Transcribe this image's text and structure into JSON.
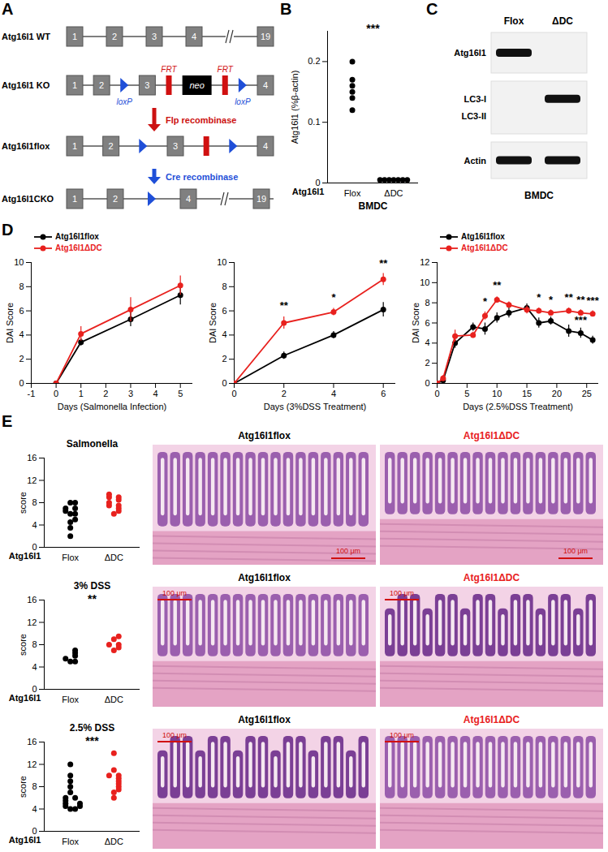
{
  "diagram": {
    "panel": "A",
    "rows": [
      {
        "label": "Atg16l1 WT",
        "elements": [
          {
            "kind": "exon",
            "text": "1"
          },
          {
            "kind": "exon",
            "text": "2"
          },
          {
            "kind": "exon",
            "text": "3"
          },
          {
            "kind": "exon",
            "text": "4"
          },
          {
            "kind": "break"
          },
          {
            "kind": "exon",
            "text": "19"
          }
        ]
      },
      {
        "label": "Atg16l1 KO",
        "elements": [
          {
            "kind": "exon",
            "text": "1"
          },
          {
            "kind": "exon",
            "text": "2"
          },
          {
            "kind": "loxp",
            "text": "loxP"
          },
          {
            "kind": "exon",
            "text": "3"
          },
          {
            "kind": "frt",
            "text": "FRT"
          },
          {
            "kind": "neo",
            "text": "neo"
          },
          {
            "kind": "frt",
            "text": "FRT"
          },
          {
            "kind": "loxp",
            "text": "loxP"
          },
          {
            "kind": "exon",
            "text": "4"
          }
        ]
      },
      {
        "label": "Atg16l1flox",
        "elements": [
          {
            "kind": "exon",
            "text": "1"
          },
          {
            "kind": "exon",
            "text": "2"
          },
          {
            "kind": "loxp"
          },
          {
            "kind": "exon",
            "text": "3"
          },
          {
            "kind": "frt"
          },
          {
            "kind": "loxp"
          },
          {
            "kind": "exon",
            "text": "4"
          }
        ]
      },
      {
        "label": "Atg16l1CKO",
        "elements": [
          {
            "kind": "exon",
            "text": "1"
          },
          {
            "kind": "exon",
            "text": "2"
          },
          {
            "kind": "loxp"
          },
          {
            "kind": "exon",
            "text": "4"
          },
          {
            "kind": "break"
          },
          {
            "kind": "exon",
            "text": "19"
          }
        ]
      }
    ],
    "arrows": [
      {
        "text": "Flp recombinase",
        "color": "#cc1111"
      },
      {
        "text": "Cre recombinase",
        "color": "#1f4fd8"
      }
    ]
  },
  "blot": {
    "panel": "C",
    "lanes": [
      "Flox",
      "ΔDC"
    ],
    "rows": [
      {
        "labels": [
          "Atg16l1"
        ],
        "bands": [
          [
            true,
            false
          ]
        ]
      },
      {
        "labels": [
          "LC3-I",
          "LC3-II"
        ],
        "bands": [
          [
            false,
            true
          ],
          [
            false,
            false
          ]
        ]
      },
      {
        "labels": [
          "Actin"
        ],
        "bands": [
          [
            true,
            true
          ]
        ]
      }
    ],
    "group_label": "BMDC"
  },
  "chart_data": [
    {
      "panel": "B",
      "type": "scatter",
      "ylabel": "Atg16l1 (%β-actin)",
      "xlabel": "Atg16l1",
      "categories": [
        "Flox",
        "ΔDC"
      ],
      "values": [
        [
          0.2,
          0.17,
          0.16,
          0.15,
          0.14,
          0.12
        ],
        [
          0.005,
          0.005,
          0.005,
          0.005,
          0.005,
          0.005,
          0.005
        ]
      ],
      "colors": [
        "#000000",
        "#000000"
      ],
      "ylim": [
        0,
        0.25
      ],
      "yticks": [
        0,
        0.1,
        0.2
      ],
      "annotations": [
        {
          "text": "***"
        },
        {
          "text": "BMDC"
        }
      ]
    },
    {
      "panel": "D",
      "type": "line",
      "marker": "circle",
      "legend": "top-left",
      "xlabel": "Days (Salmonella Infection)",
      "ylabel": "DAI Score",
      "xlim": [
        -1,
        5.5
      ],
      "xticks": [
        -1,
        0,
        1,
        2,
        3,
        4,
        5
      ],
      "ylim": [
        0,
        10
      ],
      "yticks": [
        0,
        2,
        4,
        6,
        8,
        10
      ],
      "series": [
        {
          "name": "Atg16l1flox",
          "color": "#000000",
          "x": [
            0,
            1,
            3,
            5
          ],
          "values": [
            0,
            3.4,
            5.3,
            7.3
          ],
          "errors": [
            0,
            0.3,
            0.6,
            0.8
          ]
        },
        {
          "name": "Atg16l1ΔDC",
          "color": "#e8211e",
          "x": [
            0,
            1,
            3,
            5
          ],
          "values": [
            0,
            4.1,
            6.1,
            8.1
          ],
          "errors": [
            0,
            0.6,
            1.0,
            0.8
          ]
        }
      ],
      "annotations": []
    },
    {
      "type": "line",
      "marker": "circle",
      "xlabel": "Days (3%DSS Treatment)",
      "ylabel": "DAI Score",
      "xlim": [
        0,
        6.5
      ],
      "xticks": [
        0,
        2,
        4,
        6
      ],
      "ylim": [
        0,
        10
      ],
      "yticks": [
        0,
        2,
        4,
        6,
        8,
        10
      ],
      "series": [
        {
          "name": "Atg16l1flox",
          "color": "#000000",
          "x": [
            0,
            2,
            4,
            6
          ],
          "values": [
            0,
            2.3,
            4.0,
            6.1
          ],
          "errors": [
            0.1,
            0.3,
            0.3,
            0.6
          ]
        },
        {
          "name": "Atg16l1ΔDC",
          "color": "#e8211e",
          "x": [
            0,
            2,
            4,
            6
          ],
          "values": [
            0,
            5.0,
            5.9,
            8.6
          ],
          "errors": [
            0.1,
            0.5,
            0.3,
            0.5
          ]
        }
      ],
      "annotations": [
        {
          "x": 2,
          "y": 6.0,
          "text": "**"
        },
        {
          "x": 4,
          "y": 6.7,
          "text": "*"
        },
        {
          "x": 6,
          "y": 9.5,
          "text": "**"
        }
      ]
    },
    {
      "type": "line",
      "marker": "circle",
      "legend": "top-left",
      "xlabel": "Days (2.5%DSS Treatment)",
      "ylabel": "DAI Score",
      "xlim": [
        0,
        27
      ],
      "xticks": [
        0,
        5,
        10,
        15,
        20,
        25
      ],
      "ylim": [
        0,
        12
      ],
      "yticks": [
        0,
        2,
        4,
        6,
        8,
        10,
        12
      ],
      "series": [
        {
          "name": "Atg16l1flox",
          "color": "#000000",
          "x": [
            0,
            1,
            3,
            6,
            8,
            10,
            12,
            15,
            17,
            19,
            22,
            24,
            26
          ],
          "values": [
            0,
            0.3,
            4.0,
            5.6,
            5.4,
            6.5,
            7.0,
            7.5,
            6.0,
            6.2,
            5.2,
            5.0,
            4.3
          ],
          "errors": [
            0,
            0.2,
            0.5,
            0.4,
            0.6,
            0.5,
            0.5,
            0.4,
            0.5,
            0.4,
            0.6,
            0.5,
            0.4
          ]
        },
        {
          "name": "Atg16l1ΔDC",
          "color": "#e8211e",
          "x": [
            0,
            1,
            3,
            6,
            8,
            10,
            12,
            15,
            17,
            19,
            22,
            24,
            26
          ],
          "values": [
            0,
            0.5,
            4.7,
            4.8,
            6.7,
            8.3,
            7.8,
            7.3,
            7.2,
            7.0,
            7.2,
            7.0,
            6.9
          ],
          "errors": [
            0,
            0.3,
            0.6,
            0.3,
            0.4,
            0.3,
            0.3,
            0.4,
            0.3,
            0.3,
            0.3,
            0.3,
            0.3
          ]
        }
      ],
      "annotations": [
        {
          "x": 8,
          "y": 7.6,
          "text": "*"
        },
        {
          "x": 10,
          "y": 9.2,
          "text": "**"
        },
        {
          "x": 17,
          "y": 8.0,
          "text": "*"
        },
        {
          "x": 19,
          "y": 7.8,
          "text": "*"
        },
        {
          "x": 22,
          "y": 8.0,
          "text": "**"
        },
        {
          "x": 24,
          "y": 7.8,
          "text": "**"
        },
        {
          "x": 26,
          "y": 7.7,
          "text": "***"
        },
        {
          "x": 24,
          "y": 5.8,
          "text": "***"
        }
      ]
    },
    {
      "panel": "E",
      "type": "scatter",
      "title": "Salmonella",
      "xlabel": "Atg16l1",
      "ylabel": "score",
      "categories": [
        "Flox",
        "ΔDC"
      ],
      "values": [
        [
          2,
          3.5,
          4.5,
          5,
          6,
          6,
          6.5,
          7,
          7,
          8,
          8
        ],
        [
          6,
          6.5,
          7,
          7.5,
          7.5,
          8,
          8.5,
          9,
          9,
          9.5
        ]
      ],
      "colors": [
        "#000000",
        "#e8211e"
      ],
      "ylim": [
        0,
        16
      ],
      "yticks": [
        0,
        4,
        8,
        12,
        16
      ],
      "annotations": []
    },
    {
      "type": "scatter",
      "title": "3% DSS",
      "xlabel": "Atg16l1",
      "ylabel": "score",
      "categories": [
        "Flox",
        "ΔDC"
      ],
      "values": [
        [
          5,
          5,
          5.5,
          6,
          6.5,
          7
        ],
        [
          7,
          7.5,
          8,
          8,
          9,
          9.5
        ]
      ],
      "colors": [
        "#000000",
        "#e8211e"
      ],
      "ylim": [
        0,
        16
      ],
      "yticks": [
        0,
        4,
        8,
        12,
        16
      ],
      "annotations": [
        {
          "text": "**"
        }
      ]
    },
    {
      "type": "scatter",
      "title": "2.5% DSS",
      "xlabel": "Atg16l1",
      "ylabel": "score",
      "categories": [
        "Flox",
        "ΔDC"
      ],
      "values": [
        [
          4,
          4,
          4.5,
          4.5,
          5,
          5,
          5.5,
          6,
          6,
          7,
          8,
          9,
          10,
          12
        ],
        [
          6,
          7,
          7.5,
          8,
          8.5,
          9,
          9.5,
          10,
          10,
          11,
          14
        ]
      ],
      "colors": [
        "#000000",
        "#e8211e"
      ],
      "ylim": [
        0,
        16
      ],
      "yticks": [
        0,
        4,
        8,
        12,
        16
      ],
      "annotations": [
        {
          "text": "***"
        }
      ]
    }
  ],
  "images": {
    "rows": [
      {
        "titles": [
          "Atg16l1flox",
          "Atg16l1ΔDC"
        ],
        "colors": [
          "#000000",
          "#e8211e"
        ],
        "scale_bars": [
          "100 μm",
          "100 μm"
        ]
      },
      {
        "titles": [
          "Atg16l1flox",
          "Atg16l1ΔDC"
        ],
        "colors": [
          "#000000",
          "#e8211e"
        ],
        "scale_bars": [
          "100 μm",
          "100 μm"
        ]
      },
      {
        "titles": [
          "Atg16l1flox",
          "Atg16l1ΔDC"
        ],
        "colors": [
          "#000000",
          "#e8211e"
        ],
        "scale_bars": [
          "100 μm",
          "100 μm"
        ]
      }
    ]
  }
}
